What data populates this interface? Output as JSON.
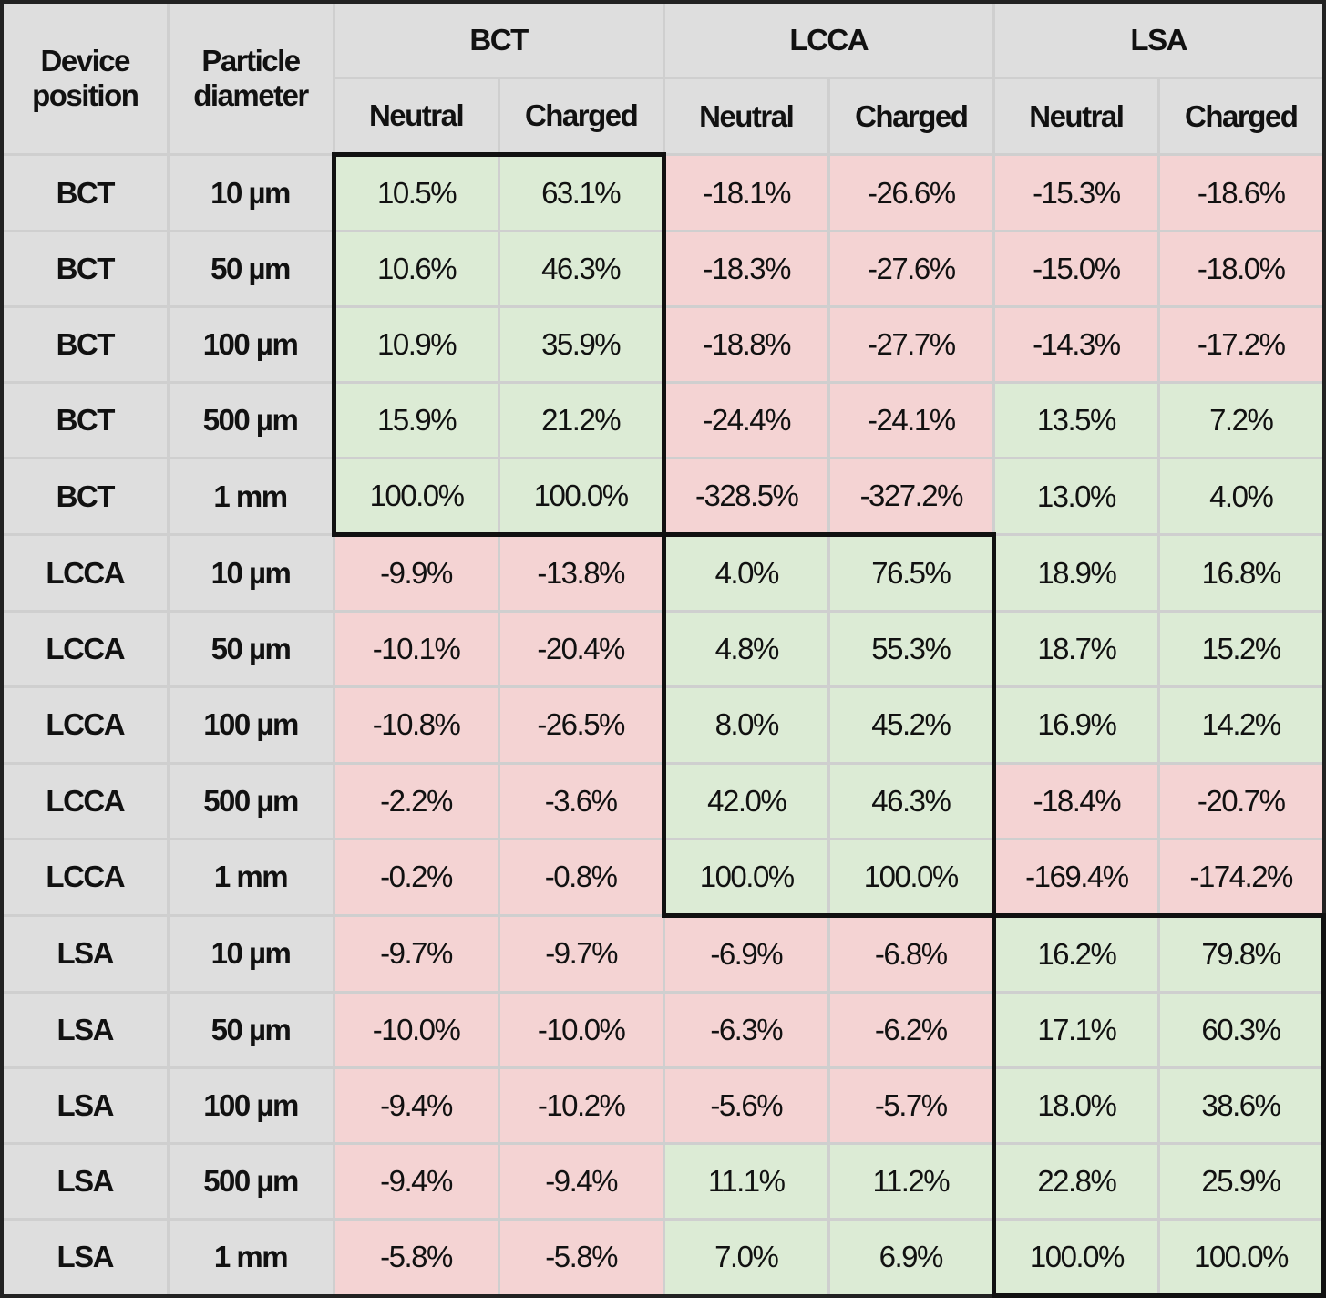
{
  "table": {
    "header": {
      "device": "Device position",
      "diameter": "Particle diameter",
      "groups": [
        "BCT",
        "LCCA",
        "LSA"
      ],
      "subcols": [
        "Neutral",
        "Charged",
        "Neutral",
        "Charged",
        "Neutral",
        "Charged"
      ]
    },
    "rows": [
      [
        "BCT",
        "10 µm",
        "10.5%",
        "63.1%",
        "-18.1%",
        "-26.6%",
        "-15.3%",
        "-18.6%"
      ],
      [
        "BCT",
        "50 µm",
        "10.6%",
        "46.3%",
        "-18.3%",
        "-27.6%",
        "-15.0%",
        "-18.0%"
      ],
      [
        "BCT",
        "100 µm",
        "10.9%",
        "35.9%",
        "-18.8%",
        "-27.7%",
        "-14.3%",
        "-17.2%"
      ],
      [
        "BCT",
        "500 µm",
        "15.9%",
        "21.2%",
        "-24.4%",
        "-24.1%",
        "13.5%",
        "7.2%"
      ],
      [
        "BCT",
        "1 mm",
        "100.0%",
        "100.0%",
        "-328.5%",
        "-327.2%",
        "13.0%",
        "4.0%"
      ],
      [
        "LCCA",
        "10 µm",
        "-9.9%",
        "-13.8%",
        "4.0%",
        "76.5%",
        "18.9%",
        "16.8%"
      ],
      [
        "LCCA",
        "50 µm",
        "-10.1%",
        "-20.4%",
        "4.8%",
        "55.3%",
        "18.7%",
        "15.2%"
      ],
      [
        "LCCA",
        "100 µm",
        "-10.8%",
        "-26.5%",
        "8.0%",
        "45.2%",
        "16.9%",
        "14.2%"
      ],
      [
        "LCCA",
        "500 µm",
        "-2.2%",
        "-3.6%",
        "42.0%",
        "46.3%",
        "-18.4%",
        "-20.7%"
      ],
      [
        "LCCA",
        "1 mm",
        "-0.2%",
        "-0.8%",
        "100.0%",
        "100.0%",
        "-169.4%",
        "-174.2%"
      ],
      [
        "LSA",
        "10 µm",
        "-9.7%",
        "-9.7%",
        "-6.9%",
        "-6.8%",
        "16.2%",
        "79.8%"
      ],
      [
        "LSA",
        "50 µm",
        "-10.0%",
        "-10.0%",
        "-6.3%",
        "-6.2%",
        "17.1%",
        "60.3%"
      ],
      [
        "LSA",
        "100 µm",
        "-9.4%",
        "-10.2%",
        "-5.6%",
        "-5.7%",
        "18.0%",
        "38.6%"
      ],
      [
        "LSA",
        "500 µm",
        "-9.4%",
        "-9.4%",
        "11.1%",
        "11.2%",
        "22.8%",
        "25.9%"
      ],
      [
        "LSA",
        "1 mm",
        "-5.8%",
        "-5.8%",
        "7.0%",
        "6.9%",
        "100.0%",
        "100.0%"
      ]
    ]
  },
  "colors": {
    "positive": "#dcebd5",
    "negative": "#f4d3d3",
    "label": "#dedede"
  }
}
